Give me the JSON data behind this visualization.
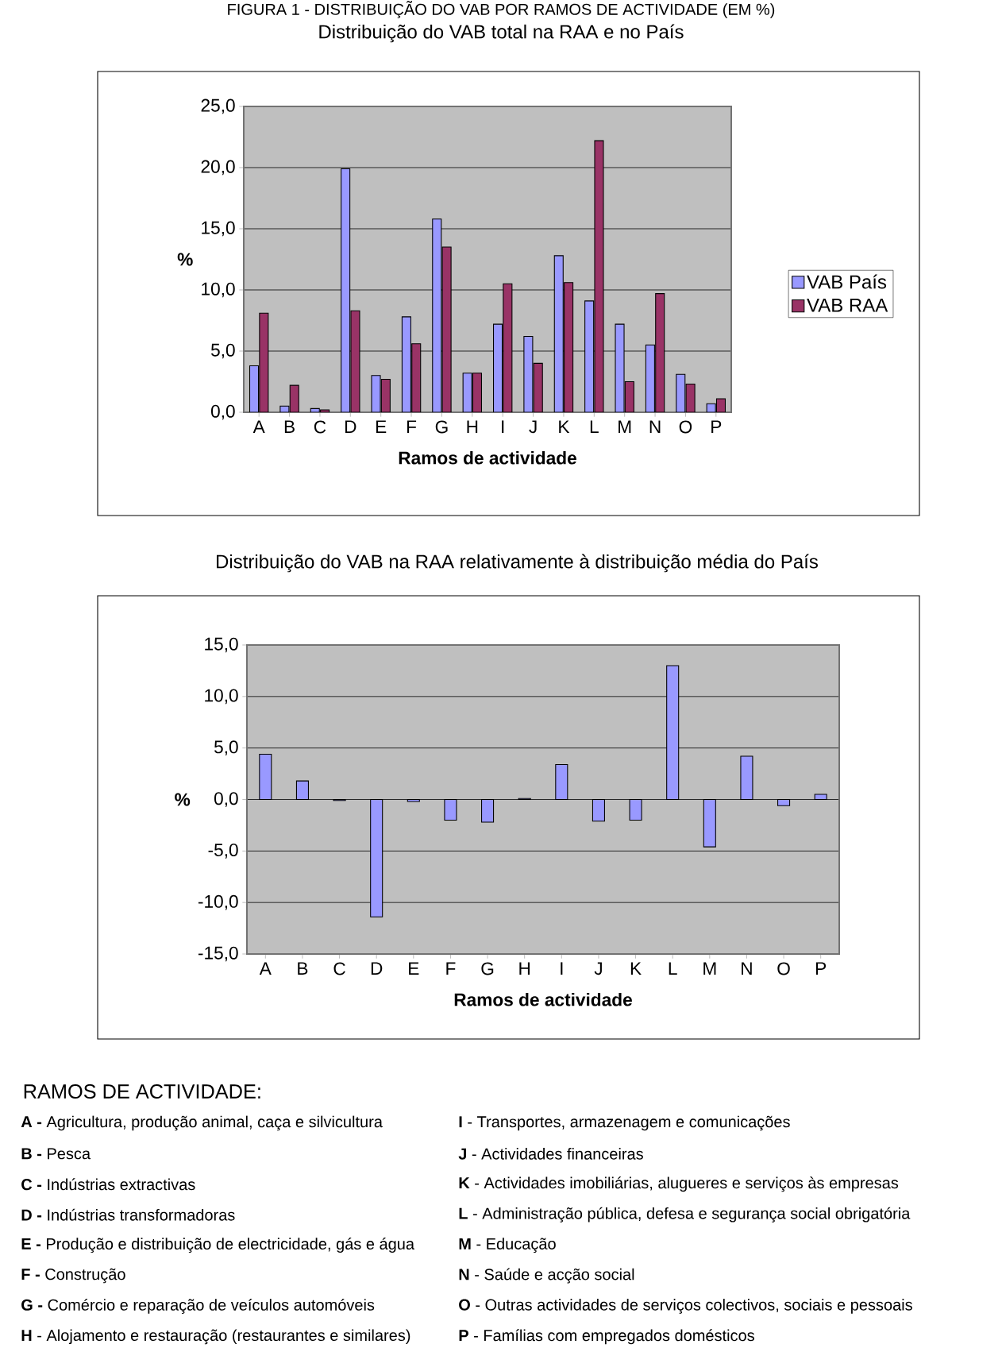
{
  "chart_data": [
    {
      "type": "bar",
      "title": "FIGURA 1 - DISTRIBUIÇÃO DO VAB POR RAMOS DE ACTIVIDADE (EM %)",
      "subtitle": "Distribuição do VAB total na RAA e no País",
      "xlabel": "Ramos de actividade",
      "ylabel": "%",
      "categories": [
        "A",
        "B",
        "C",
        "D",
        "E",
        "F",
        "G",
        "H",
        "I",
        "J",
        "K",
        "L",
        "M",
        "N",
        "O",
        "P"
      ],
      "series": [
        {
          "name": "VAB País",
          "color": "#9999ff",
          "values": [
            3.8,
            0.5,
            0.3,
            19.9,
            3.0,
            7.8,
            15.8,
            3.2,
            7.2,
            6.2,
            12.8,
            9.1,
            7.2,
            5.5,
            3.1,
            0.7
          ]
        },
        {
          "name": "VAB RAA",
          "color": "#993366",
          "values": [
            8.1,
            2.2,
            0.2,
            8.3,
            2.7,
            5.6,
            13.5,
            3.2,
            10.5,
            4.0,
            10.6,
            22.2,
            2.5,
            9.7,
            2.3,
            1.1
          ]
        }
      ],
      "ylim": [
        0,
        25
      ],
      "yticks": [
        {
          "value": 0,
          "label": "0,0"
        },
        {
          "value": 5,
          "label": "5,0"
        },
        {
          "value": 10,
          "label": "10,0"
        },
        {
          "value": 15,
          "label": "15,0"
        },
        {
          "value": 20,
          "label": "20,0"
        },
        {
          "value": 25,
          "label": "25,0"
        }
      ],
      "grid": "y",
      "legend": "right"
    },
    {
      "type": "bar",
      "title": "Distribuição do VAB na RAA relativamente à distribuição média do País",
      "xlabel": "Ramos de actividade",
      "ylabel": "%",
      "categories": [
        "A",
        "B",
        "C",
        "D",
        "E",
        "F",
        "G",
        "H",
        "I",
        "J",
        "K",
        "L",
        "M",
        "N",
        "O",
        "P"
      ],
      "series": [
        {
          "color": "#9999ff",
          "values": [
            4.4,
            1.8,
            -0.1,
            -11.4,
            -0.2,
            -2.0,
            -2.2,
            0.1,
            3.4,
            -2.1,
            -2.0,
            13.0,
            -4.6,
            4.2,
            -0.6,
            0.5
          ]
        }
      ],
      "ylim": [
        -15,
        15
      ],
      "yticks": [
        {
          "value": -15,
          "label": "-15,0"
        },
        {
          "value": -10,
          "label": "-10,0"
        },
        {
          "value": -5,
          "label": "-5,0"
        },
        {
          "value": 0,
          "label": "0,0"
        },
        {
          "value": 5,
          "label": "5,0"
        },
        {
          "value": 10,
          "label": "10,0"
        },
        {
          "value": 15,
          "label": "15,0"
        }
      ],
      "grid": "y"
    },
    {
      "type": "other",
      "title": "RAMOS DE ACTIVIDADE:",
      "annotations": [
        "**A -** Agricultura, produção animal, caça e silvicultura",
        "**B -** Pesca",
        "**C -** Indústrias extractivas",
        "**D -** Indústrias transformadoras",
        "**E -** Produção e distribuição de electricidade, gás e água",
        "**F -** Construção",
        "**G -** Comércio e reparação de veículos automóveis",
        "**H** - Alojamento e restauração (restaurantes e similares)",
        "**I** - Transportes, armazenagem e comunicações",
        "**J** - Actividades financeiras",
        "**K** - Actividades imobiliárias, alugueres e serviços às empresas",
        "**L** - Administração pública, defesa e segurança social obrigatória",
        "**M** - Educação",
        "**N** - Saúde e acção social",
        "**O** - Outras actividades de serviços colectivos, sociais e pessoais",
        "**P** - Famílias com empregados domésticos"
      ]
    }
  ]
}
